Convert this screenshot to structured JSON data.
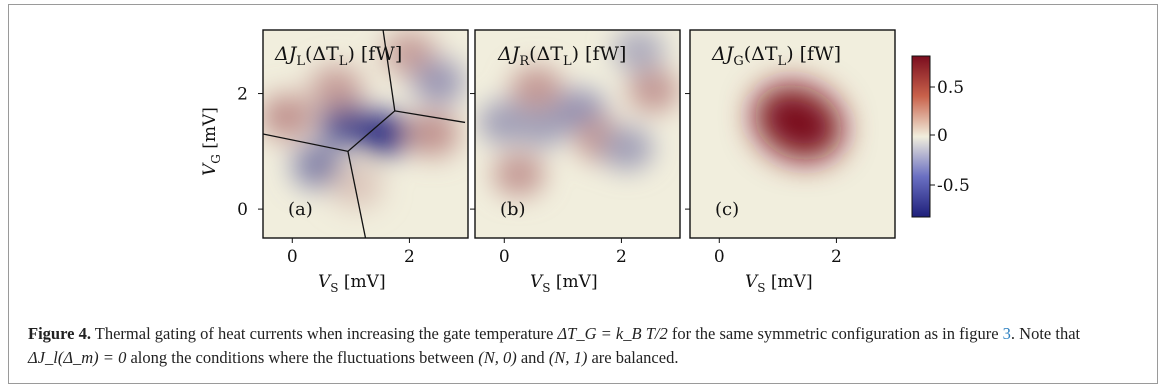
{
  "figure": {
    "panels": [
      {
        "tag": "(a)",
        "title": "ΔJ_L(ΔT_L) [fW]",
        "title_base": "ΔJ",
        "title_sub": "L",
        "title_rest": "(ΔT",
        "title_sub2": "L",
        "title_end": ") [fW]"
      },
      {
        "tag": "(b)",
        "title": "ΔJ_R(ΔT_L) [fW]",
        "title_base": "ΔJ",
        "title_sub": "R",
        "title_rest": "(ΔT",
        "title_sub2": "L",
        "title_end": ") [fW]"
      },
      {
        "tag": "(c)",
        "title": "ΔJ_G(ΔT_L) [fW]",
        "title_base": "ΔJ",
        "title_sub": "G",
        "title_rest": "(ΔT",
        "title_sub2": "L",
        "title_end": ") [fW]"
      }
    ],
    "xlabel": {
      "var": "V",
      "sub": "S",
      "unit": " [mV]"
    },
    "ylabel": {
      "var": "V",
      "sub": "G",
      "unit": " [mV]"
    },
    "xticks": [
      "0",
      "2"
    ],
    "yticks": [
      "0",
      "2"
    ],
    "colorbar_ticks": [
      "0.5",
      "0",
      "-0.5"
    ],
    "colors": {
      "max": "#7a0d1e",
      "mid": "#f1eedd",
      "min": "#1e1f7a",
      "frame": "#9a9a9a",
      "link": "#2a7fc0"
    }
  },
  "chart_data": [
    {
      "type": "heatmap",
      "title": "ΔJ_L(ΔT_L) [fW]",
      "xlabel": "V_S [mV]",
      "ylabel": "V_G [mV]",
      "xlim": [
        -0.5,
        3.0
      ],
      "ylim": [
        -0.5,
        3.1
      ],
      "zlim": [
        -0.8,
        0.8
      ],
      "features": [
        {
          "x": -0.1,
          "y": 1.6,
          "value": 0.35
        },
        {
          "x": 0.45,
          "y": 0.75,
          "value": -0.45
        },
        {
          "x": 0.9,
          "y": 1.5,
          "value": -0.65
        },
        {
          "x": 1.55,
          "y": 1.3,
          "value": -0.75
        },
        {
          "x": 0.75,
          "y": 2.1,
          "value": 0.3
        },
        {
          "x": 2.4,
          "y": 1.3,
          "value": 0.35
        },
        {
          "x": 2.0,
          "y": 2.7,
          "value": 0.3
        },
        {
          "x": 2.5,
          "y": 2.2,
          "value": -0.35
        },
        {
          "x": 1.1,
          "y": 0.4,
          "value": 0.15
        }
      ],
      "lines": [
        [
          [
            -0.5,
            1.3
          ],
          [
            0.95,
            1.0
          ],
          [
            1.75,
            1.7
          ],
          [
            2.95,
            1.5
          ]
        ],
        [
          [
            0.95,
            1.0
          ],
          [
            1.25,
            -0.5
          ]
        ],
        [
          [
            1.75,
            1.7
          ],
          [
            1.55,
            3.1
          ]
        ]
      ]
    },
    {
      "type": "heatmap",
      "title": "ΔJ_R(ΔT_L) [fW]",
      "xlabel": "V_S [mV]",
      "ylabel": "",
      "xlim": [
        -0.5,
        3.0
      ],
      "ylim": [
        -0.5,
        3.1
      ],
      "zlim": [
        -0.8,
        0.8
      ],
      "features": [
        {
          "x": 0.25,
          "y": 0.6,
          "value": 0.3
        },
        {
          "x": 0.0,
          "y": 1.5,
          "value": -0.3
        },
        {
          "x": 0.65,
          "y": 1.45,
          "value": -0.3
        },
        {
          "x": 0.55,
          "y": 2.1,
          "value": 0.3
        },
        {
          "x": 1.3,
          "y": 1.7,
          "value": -0.35
        },
        {
          "x": 1.65,
          "y": 1.2,
          "value": 0.3
        },
        {
          "x": 2.1,
          "y": 1.05,
          "value": -0.3
        },
        {
          "x": 2.55,
          "y": 2.05,
          "value": 0.3
        },
        {
          "x": 2.3,
          "y": 2.75,
          "value": -0.25
        }
      ]
    },
    {
      "type": "heatmap",
      "title": "ΔJ_G(ΔT_L) [fW]",
      "xlabel": "V_S [mV]",
      "ylabel": "",
      "xlim": [
        -0.5,
        3.0
      ],
      "ylim": [
        -0.5,
        3.1
      ],
      "zlim": [
        -0.8,
        0.8
      ],
      "features": [
        {
          "x": 1.35,
          "y": 1.5,
          "value": 0.85
        }
      ]
    }
  ],
  "caption": {
    "label": "Figure 4.",
    "text_1": " Thermal gating of heat currents when increasing the gate temperature ",
    "math_1": "ΔT_G = k_B T/2",
    "text_2": " for the same symmetric configuration as in figure ",
    "ref": "3",
    "text_3": ". Note that ",
    "math_2": "ΔJ_l(Δ_m) = 0",
    "text_4": " along the conditions where the fluctuations between ",
    "math_3": "(N, 0)",
    "text_5": " and ",
    "math_4": "(N, 1)",
    "text_6": " are balanced."
  }
}
